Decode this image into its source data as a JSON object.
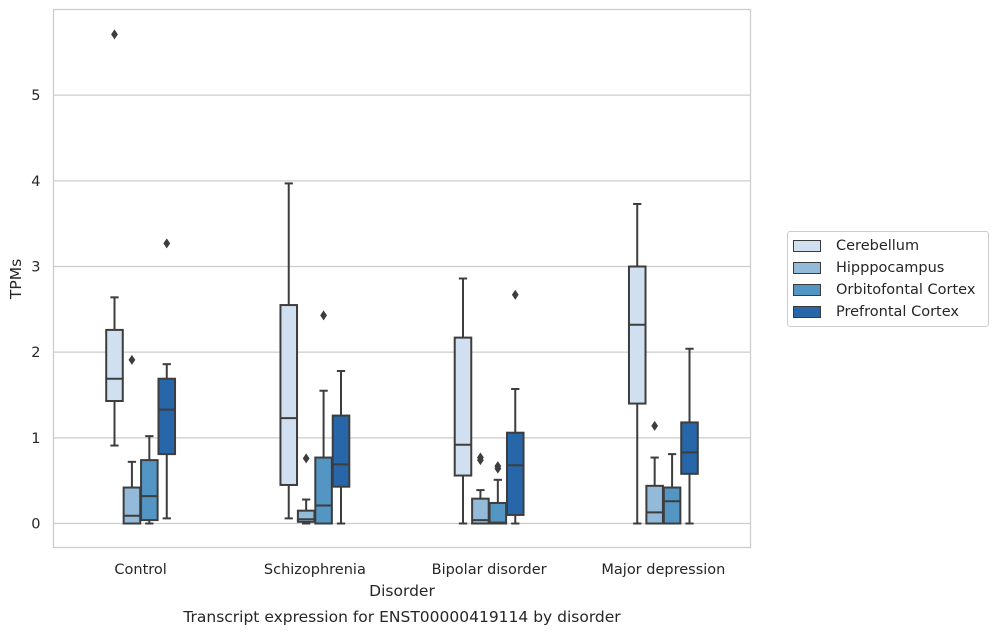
{
  "chart_data": {
    "type": "boxplot",
    "title": "Transcript expression for ENST00000419114 by disorder",
    "xlabel": "Disorder",
    "ylabel": "TPMs",
    "ylim": [
      -0.28,
      6.0
    ],
    "yticks": [
      0,
      1,
      2,
      3,
      4,
      5
    ],
    "grid": true,
    "legend_position": "right",
    "categories": [
      "Control",
      "Schizophrenia",
      "Bipolar disorder",
      "Major depression"
    ],
    "series": [
      {
        "name": "Cerebellum",
        "color": "#d1e0f0",
        "boxes": [
          {
            "whislo": 0.91,
            "q1": 1.43,
            "med": 1.69,
            "q3": 2.26,
            "whishi": 2.64,
            "fliers": [
              5.71
            ]
          },
          {
            "whislo": 0.06,
            "q1": 0.45,
            "med": 1.23,
            "q3": 2.55,
            "whishi": 3.97,
            "fliers": []
          },
          {
            "whislo": 0.0,
            "q1": 0.56,
            "med": 0.92,
            "q3": 2.17,
            "whishi": 2.86,
            "fliers": []
          },
          {
            "whislo": 0.0,
            "q1": 1.4,
            "med": 2.32,
            "q3": 3.0,
            "whishi": 3.73,
            "fliers": []
          }
        ]
      },
      {
        "name": "Hipppocampus",
        "color": "#93bbd9",
        "boxes": [
          {
            "whislo": 0.0,
            "q1": 0.0,
            "med": 0.09,
            "q3": 0.42,
            "whishi": 0.72,
            "fliers": [
              1.91
            ]
          },
          {
            "whislo": 0.0,
            "q1": 0.02,
            "med": 0.05,
            "q3": 0.15,
            "whishi": 0.28,
            "fliers": [
              0.76
            ]
          },
          {
            "whislo": 0.0,
            "q1": 0.0,
            "med": 0.04,
            "q3": 0.29,
            "whishi": 0.39,
            "fliers": [
              0.74,
              0.77
            ]
          },
          {
            "whislo": 0.0,
            "q1": 0.0,
            "med": 0.13,
            "q3": 0.44,
            "whishi": 0.77,
            "fliers": [
              1.14
            ]
          }
        ]
      },
      {
        "name": "Orbitofontal Cortex",
        "color": "#5395c3",
        "boxes": [
          {
            "whislo": 0.0,
            "q1": 0.04,
            "med": 0.32,
            "q3": 0.74,
            "whishi": 1.02,
            "fliers": []
          },
          {
            "whislo": 0.0,
            "q1": 0.0,
            "med": 0.21,
            "q3": 0.77,
            "whishi": 1.55,
            "fliers": [
              2.43
            ]
          },
          {
            "whislo": 0.0,
            "q1": 0.0,
            "med": 0.01,
            "q3": 0.24,
            "whishi": 0.51,
            "fliers": [
              0.64,
              0.67
            ]
          },
          {
            "whislo": 0.0,
            "q1": 0.0,
            "med": 0.26,
            "q3": 0.42,
            "whishi": 0.81,
            "fliers": []
          }
        ]
      },
      {
        "name": "Prefrontal Cortex",
        "color": "#2766a8",
        "boxes": [
          {
            "whislo": 0.06,
            "q1": 0.81,
            "med": 1.33,
            "q3": 1.69,
            "whishi": 1.86,
            "fliers": [
              3.27
            ]
          },
          {
            "whislo": 0.0,
            "q1": 0.43,
            "med": 0.69,
            "q3": 1.26,
            "whishi": 1.78,
            "fliers": []
          },
          {
            "whislo": 0.0,
            "q1": 0.1,
            "med": 0.68,
            "q3": 1.06,
            "whishi": 1.57,
            "fliers": [
              2.67
            ]
          },
          {
            "whislo": 0.0,
            "q1": 0.58,
            "med": 0.83,
            "q3": 1.18,
            "whishi": 2.04,
            "fliers": []
          }
        ]
      }
    ]
  }
}
